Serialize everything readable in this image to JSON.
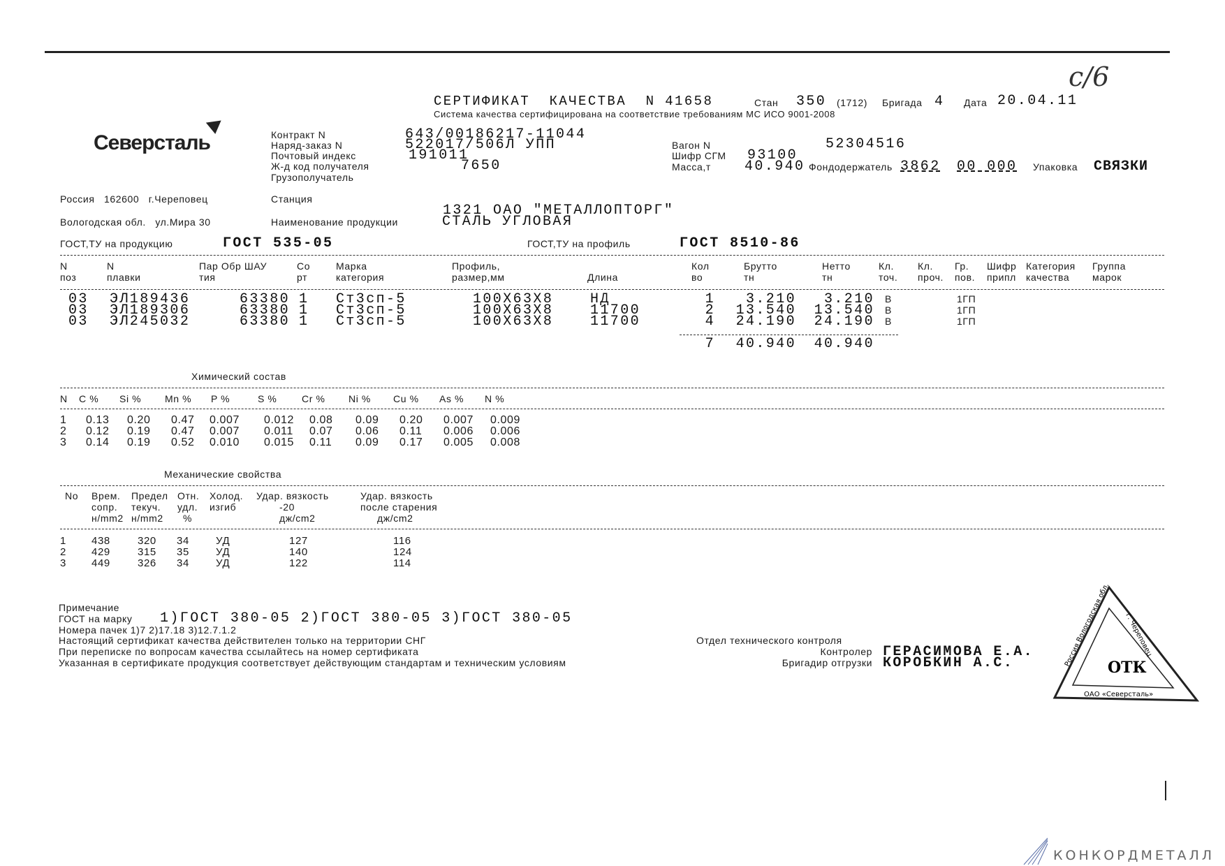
{
  "handwritten_mark": "с/6",
  "header": {
    "title": "СЕРТИФИКАТ  КАЧЕСТВА  N 41658",
    "stan_label": "Стан",
    "stan_value": "350",
    "stan_code": "(1712)",
    "brigada_label": "Бригада",
    "brigada_value": "4",
    "date_label": "Дата",
    "date_value": "20.04.11",
    "subtitle": "Система качества сертифицирована на соответствие требованиям МС ИСО 9001-2008"
  },
  "logo": {
    "text": "Северсталь"
  },
  "address": {
    "line1": "Россия   162600   г.Череповец",
    "line2": "Вологодская обл.   ул.Мира 30"
  },
  "fields": {
    "contract_label": "Контракт N",
    "contract_value": "643/00186217-11044",
    "order_label": "Наряд-заказ N",
    "order_value": "522017/506Л УПП",
    "postal_label": "Почтовый индекс",
    "postal_value": "191011",
    "rail_label": "Ж-д код получателя",
    "rail_value": "7650",
    "consignee_label": "Грузополучатель",
    "station_label": "Станция",
    "consignee_value": "1321 ОАО \"МЕТАЛЛОПТОРГ\"",
    "product_label": "Наименование продукции",
    "product_value": "СТАЛЬ УГЛОВАЯ",
    "wagon_label": "Вагон N",
    "wagon_value": "52304516",
    "sgm_label": "Шифр СГМ",
    "sgm_value": "93100",
    "mass_label": "Масса,т",
    "mass_value": "40.940",
    "holder_label": "Фондодержатель",
    "holder_value1": "3862",
    "holder_value2": "00 000",
    "package_label": "Упаковка",
    "package_value": "СВЯЗКИ",
    "gost_product_label": "ГОСТ,ТУ на продукцию",
    "gost_product_value": "ГОСТ 535-05",
    "gost_profile_label": "ГОСТ,ТУ на профиль",
    "gost_profile_value": "ГОСТ 8510-86"
  },
  "main_table": {
    "headers": [
      [
        "N",
        "поз"
      ],
      [
        "N",
        "плавки"
      ],
      [
        "Пар Обр ШАУ",
        "тия"
      ],
      [
        "Со",
        "рт"
      ],
      [
        "Марка",
        "категория"
      ],
      [
        "Профиль,",
        "размер,мм"
      ],
      [
        "",
        "Длина"
      ],
      [
        "Кол",
        "во"
      ],
      [
        "Брутто",
        "тн"
      ],
      [
        "Нетто",
        "тн"
      ],
      [
        "Кл.",
        "точ."
      ],
      [
        "Кл.",
        "проч."
      ],
      [
        "Гр.",
        "пов."
      ],
      [
        "Шифр",
        "припл"
      ],
      [
        "Категория",
        "качества"
      ],
      [
        "Группа",
        "марок"
      ]
    ],
    "rows": [
      [
        "03",
        "ЭЛ189436",
        "63380",
        "1",
        "Ст3сп-5",
        "100X63X8",
        "НД",
        "1",
        "3.210",
        "3.210",
        "В",
        "1ГП"
      ],
      [
        "03",
        "ЭЛ189306",
        "63380",
        "1",
        "Ст3сп-5",
        "100X63X8",
        "11700",
        "2",
        "13.540",
        "13.540",
        "В",
        "1ГП"
      ],
      [
        "03",
        "ЭЛ245032",
        "63380",
        "1",
        "Ст3сп-5",
        "100X63X8",
        "11700",
        "4",
        "24.190",
        "24.190",
        "В",
        "1ГП"
      ]
    ],
    "totals": [
      "7",
      "40.940",
      "40.940"
    ]
  },
  "chemical": {
    "title": "Химический состав",
    "headers": [
      "N",
      "C %",
      "Si %",
      "Mn %",
      "P %",
      "S %",
      "Cr %",
      "Ni %",
      "Cu %",
      "As %",
      "N %"
    ],
    "rows": [
      [
        "1",
        "0.13",
        "0.20",
        "0.47",
        "0.007",
        "0.012",
        "0.08",
        "0.09",
        "0.20",
        "0.007",
        "0.009"
      ],
      [
        "2",
        "0.12",
        "0.19",
        "0.47",
        "0.007",
        "0.011",
        "0.07",
        "0.06",
        "0.11",
        "0.006",
        "0.006"
      ],
      [
        "3",
        "0.14",
        "0.19",
        "0.52",
        "0.010",
        "0.015",
        "0.11",
        "0.09",
        "0.17",
        "0.005",
        "0.008"
      ]
    ]
  },
  "mechanical": {
    "title": "Механические свойства",
    "headers": [
      [
        "No",
        "",
        ""
      ],
      [
        "Врем.",
        "сопр.",
        "н/mm2"
      ],
      [
        "Предел",
        "текуч.",
        "н/mm2"
      ],
      [
        "Отн.",
        "удл.",
        "%"
      ],
      [
        "Холод.",
        "изгиб",
        ""
      ],
      [
        "Удар. вязкость",
        "-20",
        "дж/cm2"
      ],
      [
        "Удар. вязкость",
        "после старения",
        "дж/cm2"
      ]
    ],
    "rows": [
      [
        "1",
        "438",
        "320",
        "34",
        "УД",
        "127",
        "116"
      ],
      [
        "2",
        "429",
        "315",
        "35",
        "УД",
        "140",
        "124"
      ],
      [
        "3",
        "449",
        "326",
        "34",
        "УД",
        "122",
        "114"
      ]
    ]
  },
  "notes": {
    "title": "Примечание",
    "gost_label": "ГОСТ на марку",
    "gost_value": "1)ГОСТ 380-05 2)ГОСТ 380-05 3)ГОСТ 380-05",
    "packs": "Номера пачек 1)7 2)17.18 3)12.7.1.2",
    "line1": "Настоящий сертификат качества действителен только на территории СНГ",
    "line2": "При переписке по вопросам качества ссылайтесь на номер сертификата",
    "line3": "Указанная в сертификате продукция соответствует действующим стандартам и техническим условиям"
  },
  "signatures": {
    "department": "Отдел технического контроля",
    "controller_label": "Контролер",
    "controller_name": "ГЕРАСИМОВА Е.А.",
    "foreman_label": "Бригадир отгрузки",
    "foreman_name": "КОРОБКИН А.С."
  },
  "stamp": {
    "left_text": "Россия Вологодская обл.",
    "right_text": "г. Череповец",
    "center": "ОТК",
    "bottom": "ОАО «Северсталь»"
  },
  "watermark": {
    "text": "КОНКОРДМЕТАЛЛ"
  }
}
